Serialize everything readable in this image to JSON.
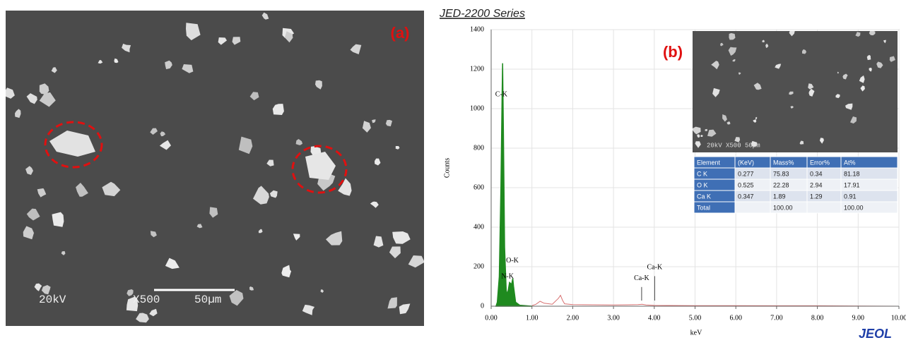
{
  "sem_image": {
    "panel_label": "(a)",
    "voltage": "20kV",
    "magnification": "X500",
    "scale": "50µm"
  },
  "chart_data": {
    "type": "area",
    "title": "JED-2200 Series",
    "panel_label": "(b)",
    "x_label": "keV",
    "y_label": "Counts",
    "xlim": [
      0,
      10
    ],
    "ylim": [
      0,
      1400
    ],
    "xticks": [
      {
        "value": 0,
        "label": "0.00"
      },
      {
        "value": 1,
        "label": "1.00"
      },
      {
        "value": 2,
        "label": "2.00"
      },
      {
        "value": 3,
        "label": "3.00"
      },
      {
        "value": 4,
        "label": "4.00"
      },
      {
        "value": 5,
        "label": "5.00"
      },
      {
        "value": 6,
        "label": "6.00"
      },
      {
        "value": 7,
        "label": "7.00"
      },
      {
        "value": 8,
        "label": "8.00"
      },
      {
        "value": 9,
        "label": "9.00"
      },
      {
        "value": 10,
        "label": "10.00"
      }
    ],
    "yticks": [
      0,
      200,
      400,
      600,
      800,
      1000,
      1200,
      1400
    ],
    "grid": true,
    "series": [
      {
        "color": "#1f8a1f",
        "x": [
          0.12,
          0.15,
          0.2,
          0.24,
          0.27,
          0.28,
          0.3,
          0.33,
          0.37,
          0.4,
          0.45,
          0.5,
          0.53,
          0.55,
          0.6,
          0.7,
          1.0
        ],
        "values": [
          0,
          20,
          150,
          600,
          1100,
          1230,
          900,
          300,
          80,
          60,
          120,
          110,
          140,
          100,
          20,
          5,
          0
        ]
      },
      {
        "color": "#d87070",
        "x": [
          1.0,
          1.1,
          1.2,
          1.3,
          1.5,
          1.65,
          1.7,
          1.75,
          1.8,
          2.0,
          2.5,
          3.0,
          3.6,
          3.7,
          3.8,
          4.0,
          5.0,
          6.0,
          7.0,
          8.0,
          9.0,
          10.0
        ],
        "values": [
          3,
          10,
          25,
          15,
          10,
          40,
          55,
          30,
          12,
          8,
          7,
          6,
          8,
          10,
          6,
          4,
          3,
          3,
          2,
          2,
          1,
          0
        ]
      }
    ],
    "annotations": [
      {
        "text": "C-K",
        "x": 0.25,
        "y": 1070
      },
      {
        "text": "O-K",
        "x": 0.52,
        "y": 230
      },
      {
        "text": "N-K",
        "x": 0.4,
        "y": 150
      },
      {
        "text": "Ca-K",
        "x": 3.69,
        "y": 140
      },
      {
        "text": "Ca-K",
        "x": 4.01,
        "y": 195
      }
    ]
  },
  "inset": {
    "caption": "20kV  X500  50µm"
  },
  "table": {
    "header": [
      "Element",
      "(KeV)",
      "Mass%",
      "Error%",
      "At%"
    ],
    "rows": [
      [
        "C K",
        "0.277",
        "75.83",
        "0.34",
        "81.18"
      ],
      [
        "O K",
        "0.525",
        "22.28",
        "2.94",
        "17.91"
      ],
      [
        "Ca K",
        "0.347",
        "1.89",
        "1.29",
        "0.91"
      ],
      [
        "Total",
        "",
        "100.00",
        "",
        "100.00"
      ]
    ]
  },
  "logo": "JEOL"
}
